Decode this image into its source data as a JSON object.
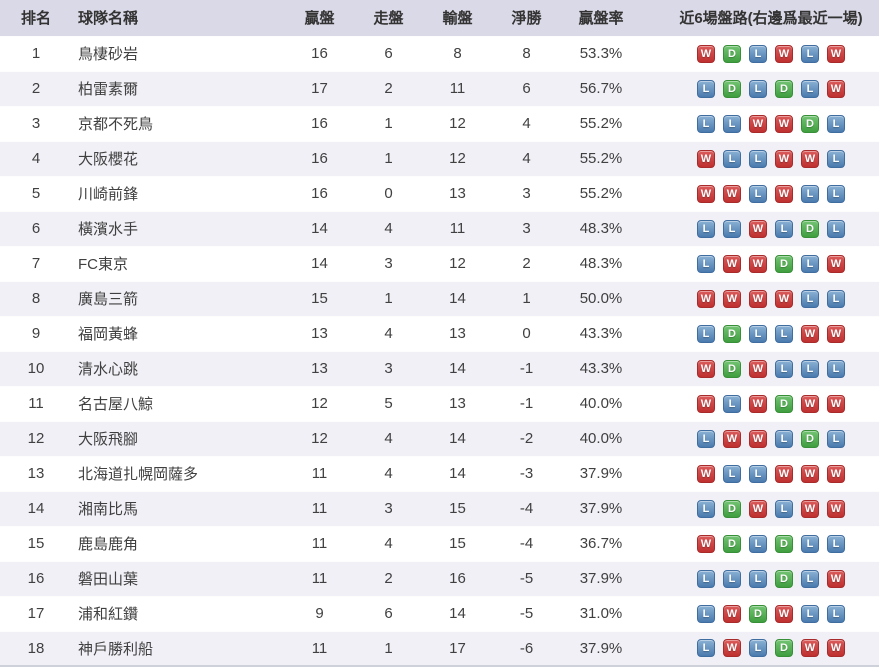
{
  "table": {
    "columns": [
      {
        "key": "rank",
        "label": "排名"
      },
      {
        "key": "team",
        "label": "球隊名稱"
      },
      {
        "key": "win",
        "label": "贏盤"
      },
      {
        "key": "push",
        "label": "走盤"
      },
      {
        "key": "loss",
        "label": "輸盤"
      },
      {
        "key": "net",
        "label": "淨勝"
      },
      {
        "key": "rate",
        "label": "贏盤率"
      },
      {
        "key": "recent",
        "label": "近6場盤路(右邊爲最近一場)"
      }
    ],
    "rows": [
      {
        "rank": "1",
        "team": "鳥棲砂岩",
        "win": "16",
        "push": "6",
        "loss": "8",
        "net": "8",
        "rate": "53.3%",
        "recent": [
          "W",
          "D",
          "L",
          "W",
          "L",
          "W"
        ]
      },
      {
        "rank": "2",
        "team": "柏雷素爾",
        "win": "17",
        "push": "2",
        "loss": "11",
        "net": "6",
        "rate": "56.7%",
        "recent": [
          "L",
          "D",
          "L",
          "D",
          "L",
          "W"
        ]
      },
      {
        "rank": "3",
        "team": "京都不死鳥",
        "win": "16",
        "push": "1",
        "loss": "12",
        "net": "4",
        "rate": "55.2%",
        "recent": [
          "L",
          "L",
          "W",
          "W",
          "D",
          "L"
        ]
      },
      {
        "rank": "4",
        "team": "大阪櫻花",
        "win": "16",
        "push": "1",
        "loss": "12",
        "net": "4",
        "rate": "55.2%",
        "recent": [
          "W",
          "L",
          "L",
          "W",
          "W",
          "L"
        ]
      },
      {
        "rank": "5",
        "team": "川崎前鋒",
        "win": "16",
        "push": "0",
        "loss": "13",
        "net": "3",
        "rate": "55.2%",
        "recent": [
          "W",
          "W",
          "L",
          "W",
          "L",
          "L"
        ]
      },
      {
        "rank": "6",
        "team": "橫濱水手",
        "win": "14",
        "push": "4",
        "loss": "11",
        "net": "3",
        "rate": "48.3%",
        "recent": [
          "L",
          "L",
          "W",
          "L",
          "D",
          "L"
        ]
      },
      {
        "rank": "7",
        "team": "FC東京",
        "win": "14",
        "push": "3",
        "loss": "12",
        "net": "2",
        "rate": "48.3%",
        "recent": [
          "L",
          "W",
          "W",
          "D",
          "L",
          "W"
        ]
      },
      {
        "rank": "8",
        "team": "廣島三箭",
        "win": "15",
        "push": "1",
        "loss": "14",
        "net": "1",
        "rate": "50.0%",
        "recent": [
          "W",
          "W",
          "W",
          "W",
          "L",
          "L"
        ]
      },
      {
        "rank": "9",
        "team": "福岡黃蜂",
        "win": "13",
        "push": "4",
        "loss": "13",
        "net": "0",
        "rate": "43.3%",
        "recent": [
          "L",
          "D",
          "L",
          "L",
          "W",
          "W"
        ]
      },
      {
        "rank": "10",
        "team": "清水心跳",
        "win": "13",
        "push": "3",
        "loss": "14",
        "net": "-1",
        "rate": "43.3%",
        "recent": [
          "W",
          "D",
          "W",
          "L",
          "L",
          "L"
        ]
      },
      {
        "rank": "11",
        "team": "名古屋八鯨",
        "win": "12",
        "push": "5",
        "loss": "13",
        "net": "-1",
        "rate": "40.0%",
        "recent": [
          "W",
          "L",
          "W",
          "D",
          "W",
          "W"
        ]
      },
      {
        "rank": "12",
        "team": "大阪飛腳",
        "win": "12",
        "push": "4",
        "loss": "14",
        "net": "-2",
        "rate": "40.0%",
        "recent": [
          "L",
          "W",
          "W",
          "L",
          "D",
          "L"
        ]
      },
      {
        "rank": "13",
        "team": "北海道扎幌岡薩多",
        "win": "11",
        "push": "4",
        "loss": "14",
        "net": "-3",
        "rate": "37.9%",
        "recent": [
          "W",
          "L",
          "L",
          "W",
          "W",
          "W"
        ]
      },
      {
        "rank": "14",
        "team": "湘南比馬",
        "win": "11",
        "push": "3",
        "loss": "15",
        "net": "-4",
        "rate": "37.9%",
        "recent": [
          "L",
          "D",
          "W",
          "L",
          "W",
          "W"
        ]
      },
      {
        "rank": "15",
        "team": "鹿島鹿角",
        "win": "11",
        "push": "4",
        "loss": "15",
        "net": "-4",
        "rate": "36.7%",
        "recent": [
          "W",
          "D",
          "L",
          "D",
          "L",
          "L"
        ]
      },
      {
        "rank": "16",
        "team": "磐田山葉",
        "win": "11",
        "push": "2",
        "loss": "16",
        "net": "-5",
        "rate": "37.9%",
        "recent": [
          "L",
          "L",
          "L",
          "D",
          "L",
          "W"
        ]
      },
      {
        "rank": "17",
        "team": "浦和紅鑽",
        "win": "9",
        "push": "6",
        "loss": "14",
        "net": "-5",
        "rate": "31.0%",
        "recent": [
          "L",
          "W",
          "D",
          "W",
          "L",
          "L"
        ]
      },
      {
        "rank": "18",
        "team": "神戶勝利船",
        "win": "11",
        "push": "1",
        "loss": "17",
        "net": "-6",
        "rate": "37.9%",
        "recent": [
          "L",
          "W",
          "L",
          "D",
          "W",
          "W"
        ]
      }
    ]
  },
  "form_badges": {
    "legend": {
      "W": "win",
      "D": "draw",
      "L": "loss"
    },
    "colors": {
      "W": {
        "top": "#da5b5b",
        "bottom": "#bf3030",
        "border": "#a82a2a"
      },
      "D": {
        "top": "#73c473",
        "bottom": "#3f9e3f",
        "border": "#379037"
      },
      "L": {
        "top": "#8ab1d4",
        "bottom": "#4a7aae",
        "border": "#3f6da0"
      }
    }
  },
  "style_colors": {
    "header_bg": "#dad9e7",
    "row_alt_bg": "#f0f0f6",
    "text": "#404040"
  }
}
